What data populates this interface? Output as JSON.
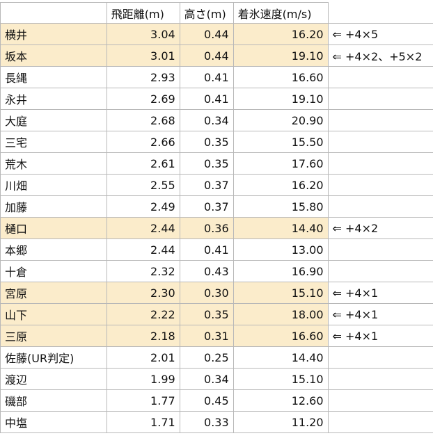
{
  "headers": {
    "name": "",
    "distance": "飛距離(m)",
    "height": "高さ(m)",
    "speed": "着氷速度(m/s)"
  },
  "rows": [
    {
      "name": "横井",
      "distance": "3.04",
      "height": "0.44",
      "speed": "16.20",
      "note": "⇐ +4×5",
      "highlight": true
    },
    {
      "name": "坂本",
      "distance": "3.01",
      "height": "0.44",
      "speed": "19.10",
      "note": "⇐ +4×2、+5×2",
      "highlight": true
    },
    {
      "name": "長縄",
      "distance": "2.93",
      "height": "0.41",
      "speed": "16.60",
      "note": "",
      "highlight": false
    },
    {
      "name": "永井",
      "distance": "2.69",
      "height": "0.41",
      "speed": "19.10",
      "note": "",
      "highlight": false
    },
    {
      "name": "大庭",
      "distance": "2.68",
      "height": "0.34",
      "speed": "20.90",
      "note": "",
      "highlight": false
    },
    {
      "name": "三宅",
      "distance": "2.66",
      "height": "0.35",
      "speed": "15.50",
      "note": "",
      "highlight": false
    },
    {
      "name": "荒木",
      "distance": "2.61",
      "height": "0.35",
      "speed": "17.60",
      "note": "",
      "highlight": false
    },
    {
      "name": "川畑",
      "distance": "2.55",
      "height": "0.37",
      "speed": "16.20",
      "note": "",
      "highlight": false
    },
    {
      "name": "加藤",
      "distance": "2.49",
      "height": "0.37",
      "speed": "15.80",
      "note": "",
      "highlight": false
    },
    {
      "name": "樋口",
      "distance": "2.44",
      "height": "0.36",
      "speed": "14.40",
      "note": "⇐ +4×2",
      "highlight": true
    },
    {
      "name": "本郷",
      "distance": "2.44",
      "height": "0.41",
      "speed": "13.00",
      "note": "",
      "highlight": false
    },
    {
      "name": "十倉",
      "distance": "2.32",
      "height": "0.43",
      "speed": "16.90",
      "note": "",
      "highlight": false
    },
    {
      "name": "宮原",
      "distance": "2.30",
      "height": "0.30",
      "speed": "15.10",
      "note": "⇐ +4×1",
      "highlight": true
    },
    {
      "name": "山下",
      "distance": "2.22",
      "height": "0.35",
      "speed": "18.00",
      "note": "⇐ +4×1",
      "highlight": true
    },
    {
      "name": "三原",
      "distance": "2.18",
      "height": "0.31",
      "speed": "16.60",
      "note": "⇐ +4×1",
      "highlight": true
    },
    {
      "name": "佐藤(UR判定)",
      "distance": "2.01",
      "height": "0.25",
      "speed": "14.40",
      "note": "",
      "highlight": false
    },
    {
      "name": "渡辺",
      "distance": "1.99",
      "height": "0.34",
      "speed": "15.10",
      "note": "",
      "highlight": false
    },
    {
      "name": "磯部",
      "distance": "1.77",
      "height": "0.45",
      "speed": "12.60",
      "note": "",
      "highlight": false
    },
    {
      "name": "中塩",
      "distance": "1.71",
      "height": "0.33",
      "speed": "11.20",
      "note": "",
      "highlight": false
    }
  ],
  "colors": {
    "highlight": "#fbeccb",
    "grid": "#b8b8b8"
  }
}
